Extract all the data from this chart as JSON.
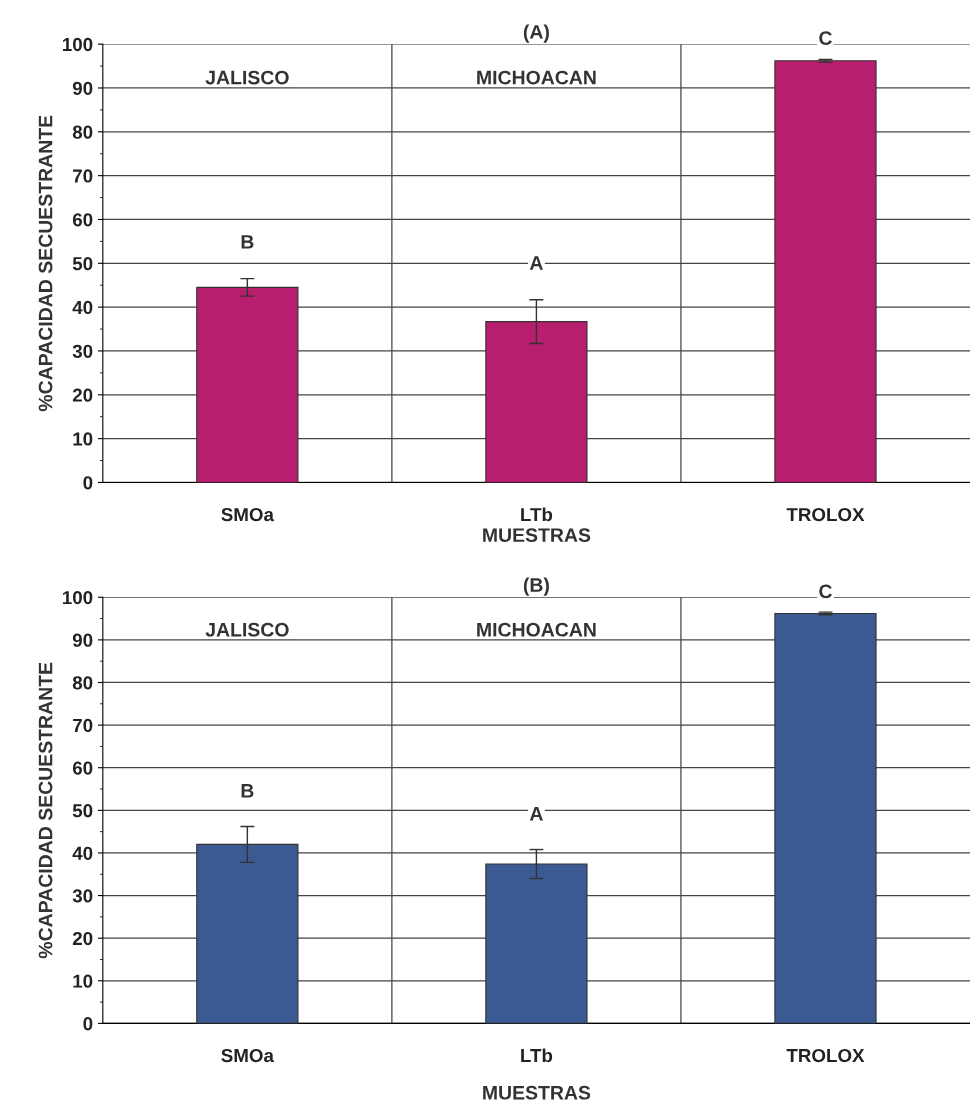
{
  "chart_data": [
    {
      "type": "bar",
      "title": "(A)",
      "xlabel": "MUESTRAS",
      "ylabel": "%CAPACIDAD SECUESTRANTE",
      "categories": [
        "SMOa",
        "LTb",
        "TROLOX"
      ],
      "values": [
        44.5,
        36.7,
        96.2
      ],
      "errors": [
        2,
        5,
        0.3
      ],
      "color": "#b81e6e",
      "ylim": [
        0,
        100
      ],
      "yticks": [
        0,
        10,
        20,
        30,
        40,
        50,
        60,
        70,
        80,
        90,
        100
      ],
      "grid": true,
      "annotations": [
        "JALISCO",
        "MICHOACAN",
        "B",
        "A",
        "C"
      ]
    },
    {
      "type": "bar",
      "title": "(B)",
      "xlabel": "MUESTRAS",
      "ylabel": "%CAPACIDAD SECUESTRANTE",
      "categories": [
        "SMOa",
        "LTb",
        "TROLOX"
      ],
      "values": [
        42,
        37.4,
        96.2
      ],
      "errors": [
        4.2,
        3.4,
        0.3
      ],
      "color": "#3c5a92",
      "ylim": [
        0,
        100
      ],
      "yticks": [
        0,
        10,
        20,
        30,
        40,
        50,
        60,
        70,
        80,
        90,
        100
      ],
      "grid": true,
      "annotations": [
        "JALISCO",
        "MICHOACAN",
        "B",
        "A",
        "C"
      ]
    }
  ]
}
